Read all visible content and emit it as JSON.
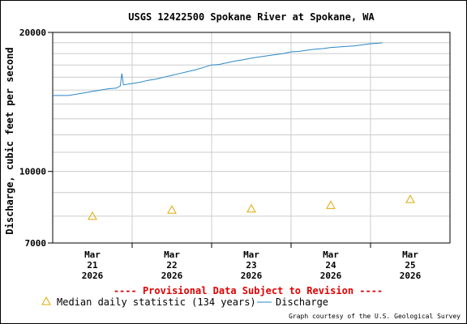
{
  "chart_data": {
    "type": "line",
    "title": "USGS 12422500 Spokane River at Spokane, WA",
    "ylabel": "Discharge, cubic feet per second",
    "xlabel": "",
    "yscale": "log",
    "ylim": [
      7000,
      20000
    ],
    "xlim": [
      -0.5,
      4.5
    ],
    "y_tick_labels": [
      {
        "value": 7000,
        "label": "7000"
      },
      {
        "value": 10000,
        "label": "10000"
      },
      {
        "value": 20000,
        "label": "20000"
      }
    ],
    "y_minor_gridlines": [
      8000,
      9000,
      11000,
      12000,
      13000,
      14000,
      15000,
      16000,
      17000,
      18000,
      19000
    ],
    "x_ticks": [
      {
        "pos": 0,
        "month": "Mar",
        "day": "21",
        "year": "2026"
      },
      {
        "pos": 1,
        "month": "Mar",
        "day": "22",
        "year": "2026"
      },
      {
        "pos": 2,
        "month": "Mar",
        "day": "23",
        "year": "2026"
      },
      {
        "pos": 3,
        "month": "Mar",
        "day": "24",
        "year": "2026"
      },
      {
        "pos": 4,
        "month": "Mar",
        "day": "25",
        "year": "2026"
      }
    ],
    "grid": true,
    "series": [
      {
        "name": "Discharge",
        "kind": "line",
        "color": "#2a88c8",
        "points": [
          [
            -0.5,
            14600
          ],
          [
            -0.3,
            14600
          ],
          [
            -0.2,
            14700
          ],
          [
            -0.1,
            14800
          ],
          [
            0.0,
            14900
          ],
          [
            0.1,
            15000
          ],
          [
            0.2,
            15100
          ],
          [
            0.3,
            15150
          ],
          [
            0.35,
            15300
          ],
          [
            0.37,
            16300
          ],
          [
            0.39,
            15400
          ],
          [
            0.5,
            15500
          ],
          [
            0.6,
            15600
          ],
          [
            0.7,
            15750
          ],
          [
            0.8,
            15850
          ],
          [
            0.9,
            16000
          ],
          [
            1.0,
            16150
          ],
          [
            1.1,
            16300
          ],
          [
            1.2,
            16450
          ],
          [
            1.3,
            16600
          ],
          [
            1.4,
            16800
          ],
          [
            1.5,
            17000
          ],
          [
            1.6,
            17050
          ],
          [
            1.7,
            17200
          ],
          [
            1.8,
            17350
          ],
          [
            1.9,
            17450
          ],
          [
            2.0,
            17600
          ],
          [
            2.1,
            17700
          ],
          [
            2.2,
            17800
          ],
          [
            2.3,
            17900
          ],
          [
            2.4,
            18000
          ],
          [
            2.5,
            18150
          ],
          [
            2.6,
            18200
          ],
          [
            2.7,
            18300
          ],
          [
            2.8,
            18400
          ],
          [
            2.9,
            18450
          ],
          [
            3.0,
            18550
          ],
          [
            3.1,
            18600
          ],
          [
            3.2,
            18650
          ],
          [
            3.3,
            18700
          ],
          [
            3.4,
            18800
          ],
          [
            3.5,
            18900
          ],
          [
            3.6,
            18950
          ],
          [
            3.65,
            19000
          ]
        ]
      },
      {
        "name": "Median daily statistic (134 years)",
        "kind": "marker",
        "marker": "triangle",
        "color": "#e0a800",
        "points": [
          [
            0,
            8000
          ],
          [
            1,
            8250
          ],
          [
            2,
            8300
          ],
          [
            3,
            8450
          ],
          [
            4,
            8700
          ]
        ]
      }
    ],
    "notice": "---- Provisional Data Subject to Revision ----",
    "notice_color": "#e00000",
    "credit": "Graph courtesy of the U.S. Geological Survey",
    "legend_placement": "bottom"
  }
}
